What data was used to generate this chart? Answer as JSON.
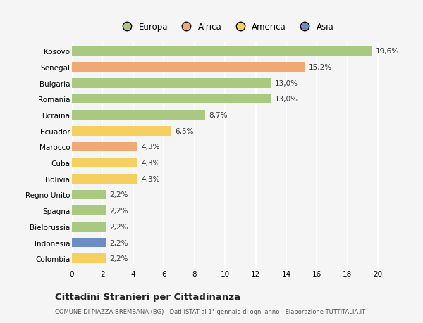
{
  "countries": [
    "Kosovo",
    "Senegal",
    "Bulgaria",
    "Romania",
    "Ucraina",
    "Ecuador",
    "Marocco",
    "Cuba",
    "Bolivia",
    "Regno Unito",
    "Spagna",
    "Bielorussia",
    "Indonesia",
    "Colombia"
  ],
  "values": [
    19.6,
    15.2,
    13.0,
    13.0,
    8.7,
    6.5,
    4.3,
    4.3,
    4.3,
    2.2,
    2.2,
    2.2,
    2.2,
    2.2
  ],
  "labels": [
    "19,6%",
    "15,2%",
    "13,0%",
    "13,0%",
    "8,7%",
    "6,5%",
    "4,3%",
    "4,3%",
    "4,3%",
    "2,2%",
    "2,2%",
    "2,2%",
    "2,2%",
    "2,2%"
  ],
  "continents": [
    "Europa",
    "Africa",
    "Europa",
    "Europa",
    "Europa",
    "America",
    "Africa",
    "America",
    "America",
    "Europa",
    "Europa",
    "Europa",
    "Asia",
    "America"
  ],
  "colors": {
    "Europa": "#a8c97f",
    "Africa": "#f0a875",
    "America": "#f5d060",
    "Asia": "#6b8dc4"
  },
  "legend_order": [
    "Europa",
    "Africa",
    "America",
    "Asia"
  ],
  "title": "Cittadini Stranieri per Cittadinanza",
  "subtitle": "COMUNE DI PIAZZA BREMBANA (BG) - Dati ISTAT al 1° gennaio di ogni anno - Elaborazione TUTTITALIA.IT",
  "xlim": [
    0,
    21
  ],
  "xticks": [
    0,
    2,
    4,
    6,
    8,
    10,
    12,
    14,
    16,
    18,
    20
  ],
  "background_color": "#f5f5f5",
  "grid_color": "#ffffff",
  "bar_height": 0.6
}
